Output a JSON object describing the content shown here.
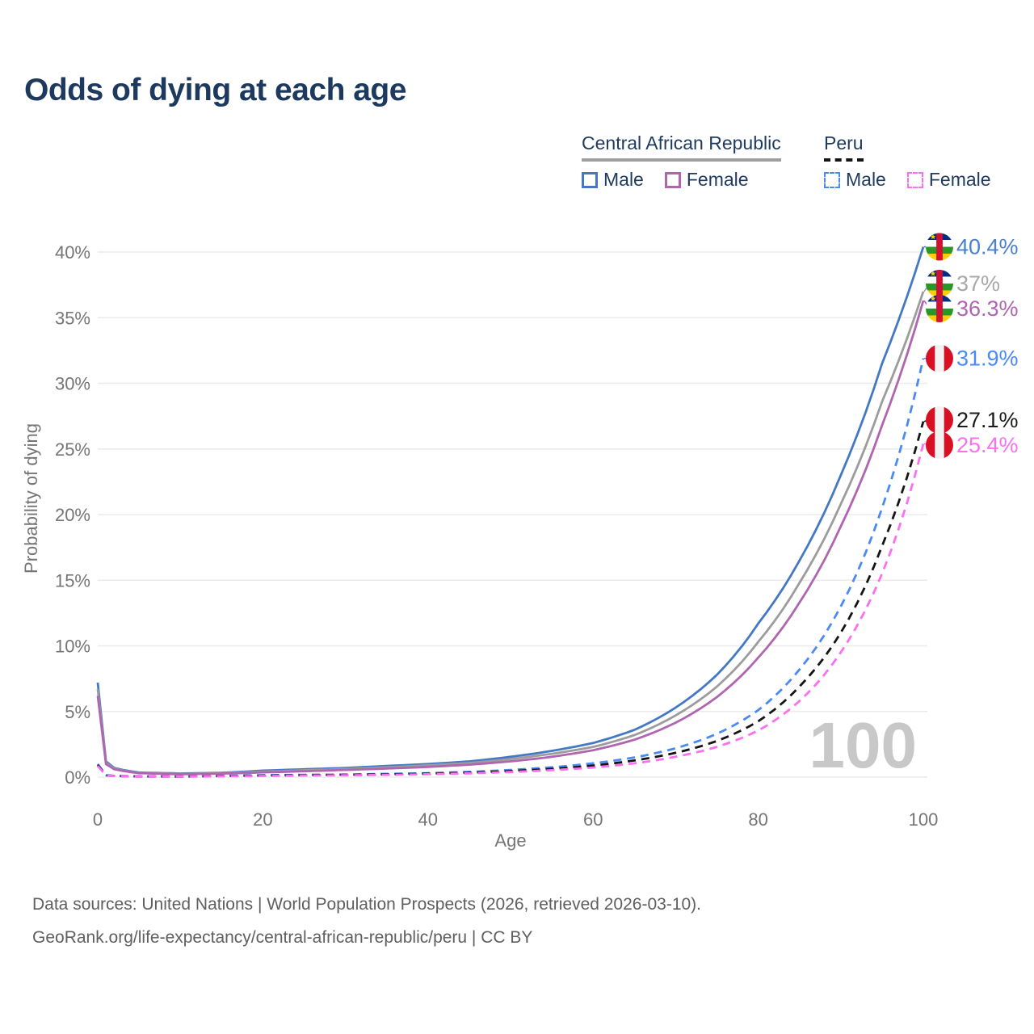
{
  "title": "Odds of dying at each age",
  "legend": {
    "groups": [
      {
        "name": "Central African Republic",
        "underline_style": "solid",
        "underline_color": "#9e9e9e",
        "items": [
          {
            "label": "Male",
            "color": "#4478c4",
            "dashed": false
          },
          {
            "label": "Female",
            "color": "#b065b0",
            "dashed": false
          }
        ]
      },
      {
        "name": "Peru",
        "underline_style": "dashed",
        "underline_color": "#141414",
        "items": [
          {
            "label": "Male",
            "color": "#4a8af4",
            "dashed": true
          },
          {
            "label": "Female",
            "color": "#fa70f0",
            "dashed": true
          }
        ]
      }
    ]
  },
  "axes": {
    "x": {
      "title": "Age",
      "ticks": [
        {
          "label": "0",
          "value": 0
        },
        {
          "label": "20",
          "value": 20
        },
        {
          "label": "40",
          "value": 40
        },
        {
          "label": "60",
          "value": 60
        },
        {
          "label": "80",
          "value": 80
        },
        {
          "label": "100",
          "value": 100
        }
      ]
    },
    "y": {
      "title": "Probability of dying",
      "ticks": [
        {
          "label": "0%",
          "value": 0
        },
        {
          "label": "5%",
          "value": 5
        },
        {
          "label": "10%",
          "value": 10
        },
        {
          "label": "15%",
          "value": 15
        },
        {
          "label": "20%",
          "value": 20
        },
        {
          "label": "25%",
          "value": 25
        },
        {
          "label": "30%",
          "value": 30
        },
        {
          "label": "35%",
          "value": 35
        },
        {
          "label": "40%",
          "value": 40
        }
      ]
    }
  },
  "watermark": "100",
  "footer": {
    "line1": "Data sources: United Nations | World Population Prospects (2026, retrieved 2026-03-10).",
    "line2": "GeoRank.org/life-expectancy/central-african-republic/peru | CC BY"
  },
  "flag_colors": {
    "car": {
      "stripes": [
        "#003082",
        "#ffffff",
        "#289728",
        "#ffce00"
      ],
      "band": "#d21034",
      "star": "#ffce00"
    },
    "peru": {
      "stripes": [
        "#d91023",
        "#f2f2f2",
        "#d91023"
      ]
    }
  },
  "chart_data": {
    "type": "line",
    "title": "Odds of dying at each age",
    "xlabel": "Age",
    "ylabel": "Probability of dying",
    "x_range": [
      0,
      100
    ],
    "y_range_percent": [
      0,
      40
    ],
    "grid": "horizontal",
    "legend_position": "top-right",
    "sample_ages": [
      0,
      1,
      2,
      5,
      10,
      15,
      20,
      25,
      30,
      35,
      40,
      45,
      50,
      55,
      60,
      65,
      70,
      75,
      80,
      85,
      90,
      95,
      100
    ],
    "series": [
      {
        "name": "Central African Republic Male",
        "color": "#4478c4",
        "dash": false,
        "flag": "car",
        "end_value": 40.4,
        "end_label": "40.4%",
        "label_color": "#4a7fd1",
        "values": [
          7.2,
          1.2,
          0.7,
          0.35,
          0.28,
          0.33,
          0.5,
          0.6,
          0.7,
          0.85,
          1.0,
          1.2,
          1.55,
          2.0,
          2.6,
          3.6,
          5.3,
          7.8,
          11.7,
          16.5,
          23.0,
          31.5,
          40.4
        ]
      },
      {
        "name": "Central African Republic Total",
        "color": "#9c9c9c",
        "dash": false,
        "flag": "car",
        "end_value": 37.0,
        "end_label": "37%",
        "label_color": "#a8a8a8",
        "values": [
          6.7,
          1.1,
          0.65,
          0.32,
          0.25,
          0.3,
          0.42,
          0.52,
          0.62,
          0.75,
          0.9,
          1.08,
          1.38,
          1.78,
          2.3,
          3.2,
          4.7,
          6.9,
          10.3,
          14.8,
          20.8,
          28.6,
          37.0
        ]
      },
      {
        "name": "Central African Republic Female",
        "color": "#b065b0",
        "dash": false,
        "flag": "car",
        "end_value": 36.3,
        "end_label": "36.3%",
        "label_color": "#b065b0",
        "values": [
          6.2,
          1.0,
          0.6,
          0.3,
          0.22,
          0.27,
          0.36,
          0.45,
          0.55,
          0.65,
          0.78,
          0.95,
          1.2,
          1.55,
          2.05,
          2.85,
          4.15,
          6.1,
          9.1,
          13.3,
          19.1,
          26.8,
          36.3
        ]
      },
      {
        "name": "Peru Male",
        "color": "#4a8af4",
        "dash": true,
        "flag": "peru",
        "end_value": 31.9,
        "end_label": "31.9%",
        "label_color": "#4a8af4",
        "values": [
          1.0,
          0.15,
          0.1,
          0.06,
          0.05,
          0.1,
          0.15,
          0.18,
          0.2,
          0.25,
          0.3,
          0.4,
          0.55,
          0.75,
          1.05,
          1.5,
          2.2,
          3.3,
          5.1,
          8.2,
          13.0,
          20.5,
          31.9
        ]
      },
      {
        "name": "Peru Total",
        "color": "#141414",
        "dash": true,
        "flag": "peru",
        "end_value": 27.1,
        "end_label": "27.1%",
        "label_color": "#1c1c1c",
        "values": [
          0.92,
          0.13,
          0.09,
          0.05,
          0.045,
          0.08,
          0.12,
          0.15,
          0.17,
          0.21,
          0.26,
          0.34,
          0.46,
          0.63,
          0.88,
          1.27,
          1.85,
          2.75,
          4.25,
          6.9,
          11.0,
          17.6,
          27.1
        ]
      },
      {
        "name": "Peru Female",
        "color": "#fa70f0",
        "dash": true,
        "flag": "peru",
        "end_value": 25.4,
        "end_label": "25.4%",
        "label_color": "#fa70f0",
        "values": [
          0.85,
          0.12,
          0.08,
          0.045,
          0.04,
          0.06,
          0.09,
          0.12,
          0.14,
          0.17,
          0.22,
          0.29,
          0.39,
          0.53,
          0.73,
          1.05,
          1.55,
          2.3,
          3.55,
          5.8,
          9.5,
          15.5,
          25.4
        ]
      }
    ]
  }
}
